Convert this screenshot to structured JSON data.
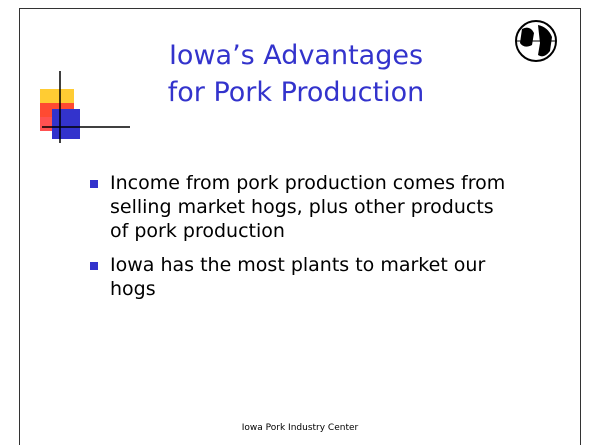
{
  "header": {
    "title": [
      "Iowa’s Advantages",
      "for Pork Production"
    ]
  },
  "bullets": [
    "Income from pork production comes from selling market hogs, plus other products of pork production",
    "Iowa has the most plants to market our hogs"
  ],
  "footer": "Iowa Pork Industry Center"
}
